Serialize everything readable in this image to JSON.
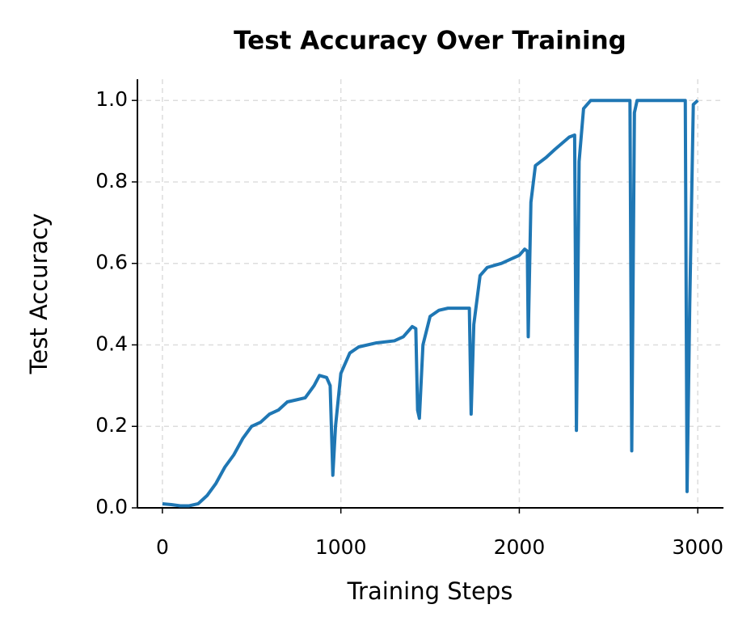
{
  "chart_data": {
    "type": "line",
    "title": "Test Accuracy Over Training",
    "x_label": "Training Steps",
    "y_label": "Test Accuracy",
    "x": [
      0,
      50,
      100,
      150,
      200,
      250,
      300,
      350,
      400,
      450,
      500,
      550,
      600,
      650,
      700,
      750,
      800,
      850,
      880,
      920,
      940,
      955,
      970,
      1000,
      1050,
      1100,
      1200,
      1300,
      1350,
      1400,
      1420,
      1430,
      1440,
      1460,
      1500,
      1550,
      1600,
      1700,
      1720,
      1730,
      1745,
      1780,
      1820,
      1900,
      2000,
      2030,
      2045,
      2050,
      2065,
      2090,
      2150,
      2200,
      2280,
      2310,
      2320,
      2335,
      2360,
      2400,
      2500,
      2620,
      2630,
      2645,
      2660,
      2800,
      2930,
      2940,
      2955,
      2975,
      3000
    ],
    "series": [
      {
        "name": "Test Accuracy",
        "color": "#1f77b4",
        "values": [
          0.01,
          0.008,
          0.005,
          0.005,
          0.01,
          0.03,
          0.06,
          0.1,
          0.13,
          0.17,
          0.2,
          0.21,
          0.23,
          0.24,
          0.26,
          0.265,
          0.27,
          0.3,
          0.325,
          0.32,
          0.3,
          0.08,
          0.2,
          0.33,
          0.38,
          0.395,
          0.405,
          0.41,
          0.42,
          0.445,
          0.44,
          0.24,
          0.22,
          0.4,
          0.47,
          0.485,
          0.49,
          0.49,
          0.49,
          0.23,
          0.45,
          0.57,
          0.59,
          0.6,
          0.62,
          0.635,
          0.63,
          0.42,
          0.75,
          0.84,
          0.86,
          0.88,
          0.91,
          0.915,
          0.19,
          0.85,
          0.98,
          1.0,
          1.0,
          1.0,
          0.14,
          0.97,
          1.0,
          1.0,
          1.0,
          0.04,
          0.5,
          0.99,
          1.0
        ]
      }
    ],
    "xlim": [
      -140,
      3144
    ],
    "ylim": [
      0,
      1.052
    ],
    "xticks": [
      0,
      1000,
      2000,
      3000
    ],
    "yticks": [
      {
        "value": 0,
        "label": "0.0"
      },
      {
        "value": 0.2,
        "label": "0.2"
      },
      {
        "value": 0.4,
        "label": "0.4"
      },
      {
        "value": 0.6,
        "label": "0.6"
      },
      {
        "value": 0.8,
        "label": "0.8"
      },
      {
        "value": 1.0,
        "label": "1.0"
      }
    ],
    "grid": true
  }
}
